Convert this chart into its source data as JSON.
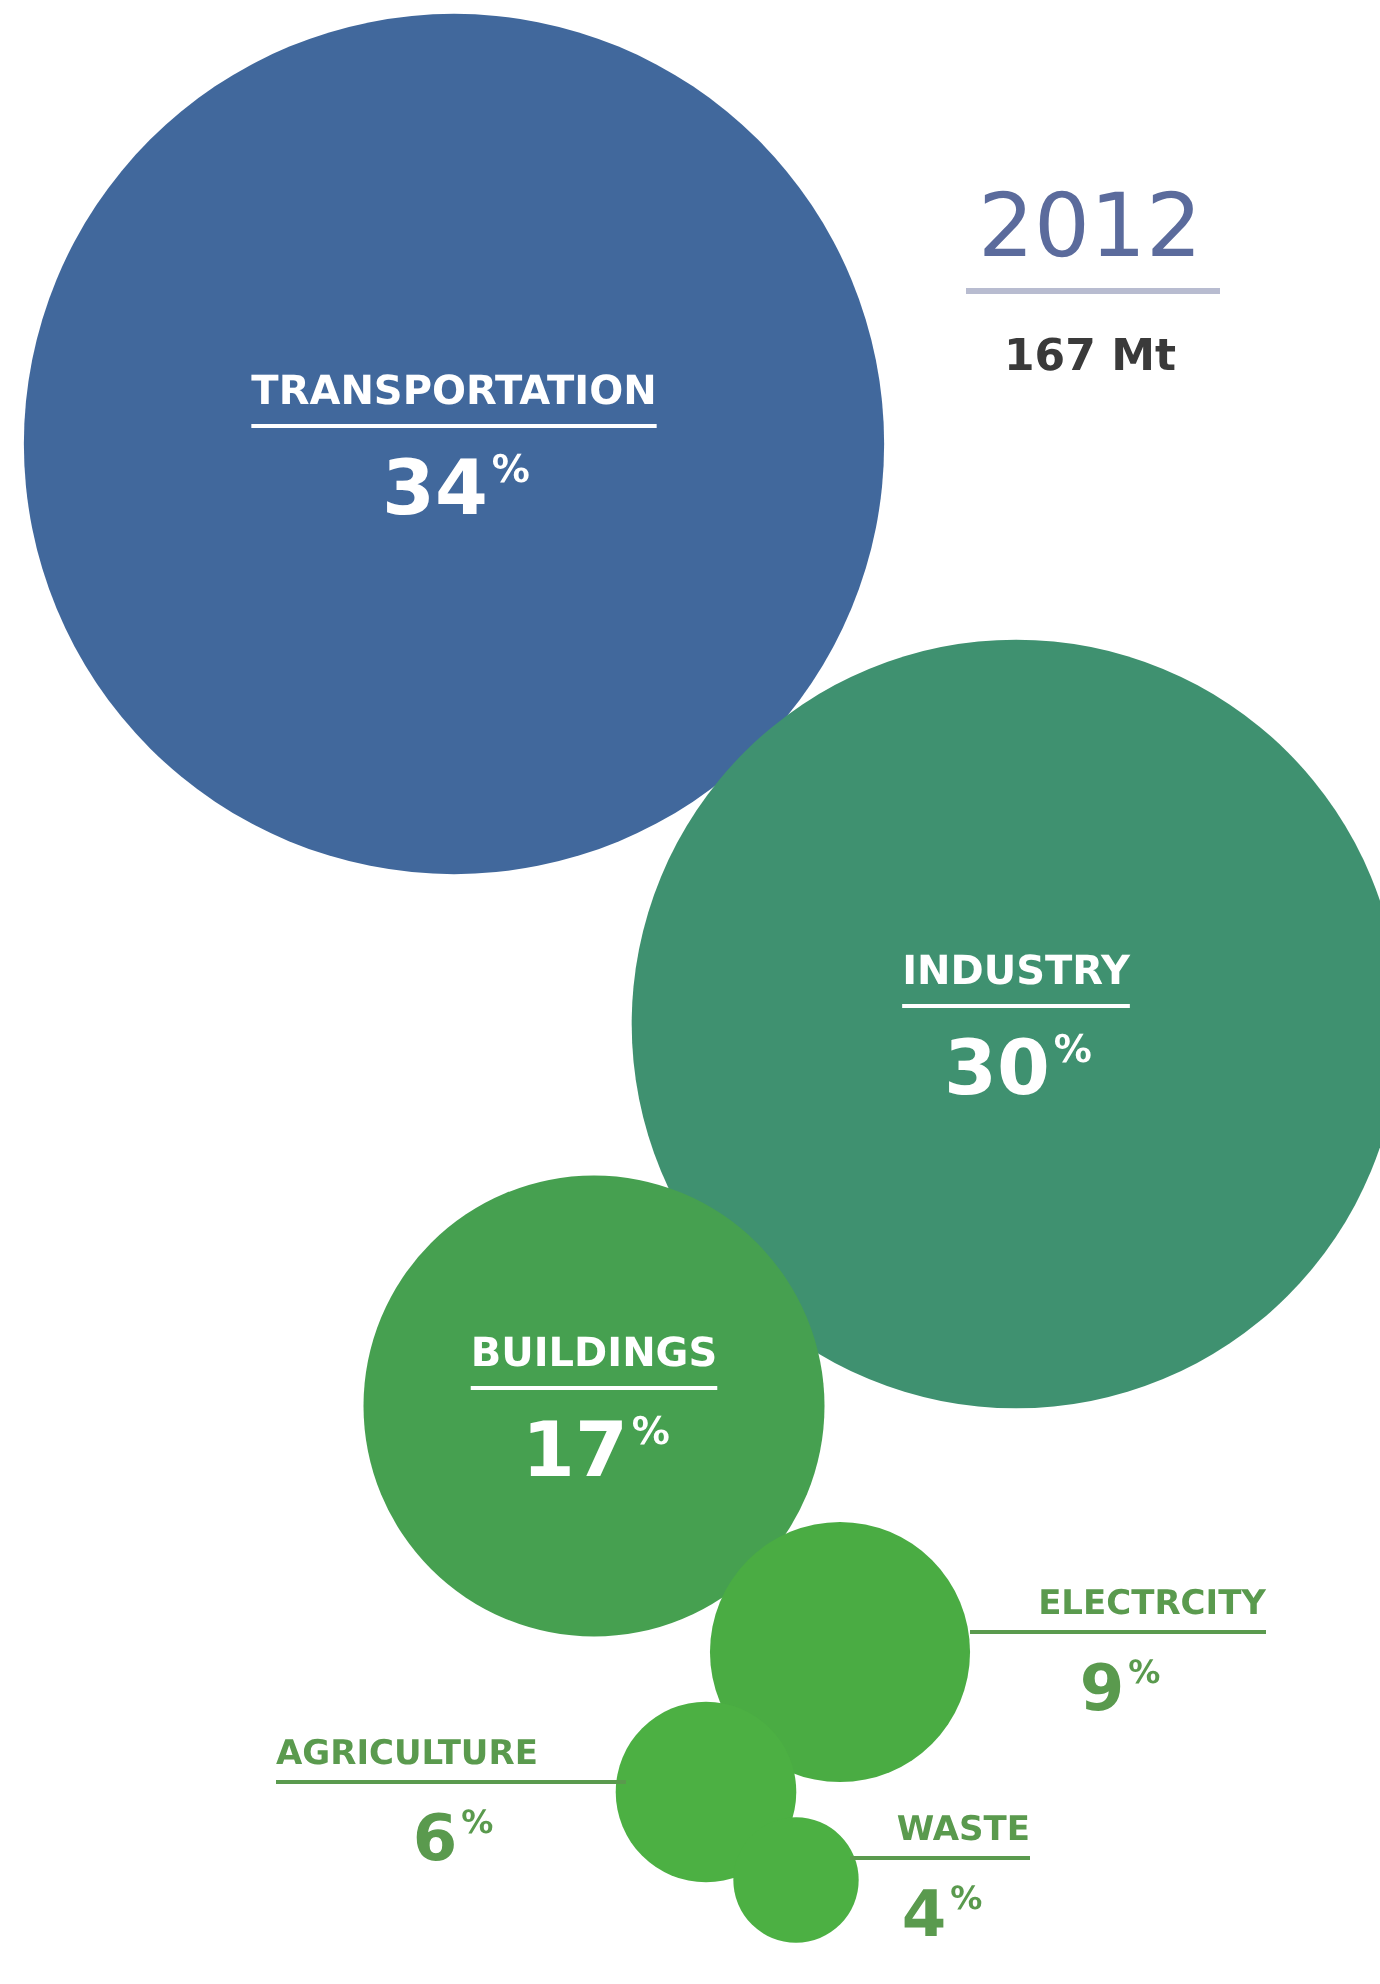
{
  "chart_data": {
    "type": "other",
    "title": "2012",
    "subtitle": "167 Mt",
    "categories": [
      "TRANSPORTATION",
      "INDUSTRY",
      "BUILDINGS",
      "ELECTRCITY",
      "AGRICULTURE",
      "WASTE"
    ],
    "values": [
      34,
      30,
      17,
      9,
      6,
      4
    ],
    "value_labels": [
      "34%",
      "30%",
      "17%",
      "9%",
      "6%",
      "4%"
    ],
    "colors": [
      "#41689c",
      "#3f9170",
      "#46a050",
      "#4aac43",
      "#4cb043",
      "#4cb043"
    ]
  }
}
